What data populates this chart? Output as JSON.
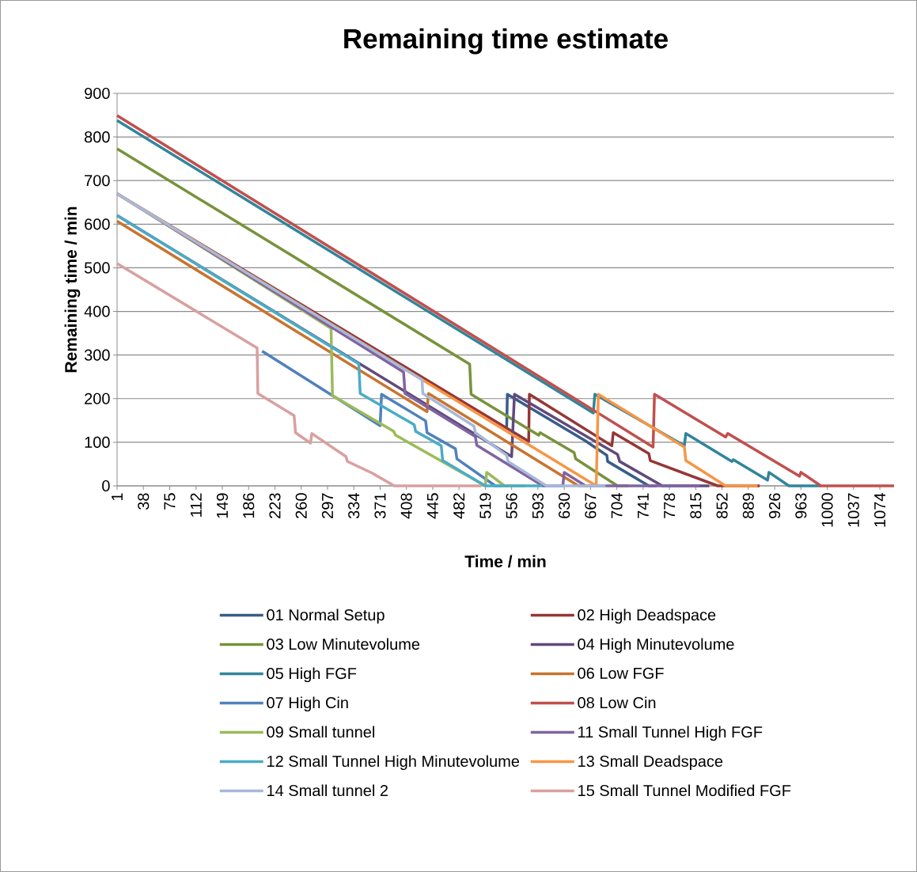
{
  "chart_data": {
    "type": "line",
    "title": "Remaining time estimate",
    "xlabel": "Time / min",
    "ylabel": "Remaining time / min",
    "xlim": [
      1,
      1094
    ],
    "ylim": [
      0,
      900
    ],
    "xticks": [
      1,
      38,
      75,
      112,
      149,
      186,
      223,
      260,
      297,
      334,
      371,
      408,
      445,
      482,
      519,
      556,
      593,
      630,
      667,
      704,
      741,
      778,
      815,
      852,
      889,
      926,
      963,
      1000,
      1037,
      1074
    ],
    "yticks": [
      0,
      100,
      200,
      300,
      400,
      500,
      600,
      700,
      800,
      900
    ],
    "grid": "y",
    "legend": "bottom",
    "line_style": "solid",
    "series": [
      {
        "name": "01 Normal Setup",
        "color": "#385d8a",
        "x": [
          549,
          550,
          660,
          690,
          691,
          749,
          760
        ],
        "values": [
          131,
          210,
          103,
          70,
          56,
          0,
          0
        ]
      },
      {
        "name": "02 High Deadspace",
        "color": "#953735",
        "x": [
          1,
          580,
          581,
          697,
          699,
          749,
          751,
          846,
          905
        ],
        "values": [
          670,
          102,
          210,
          92,
          122,
          74,
          58,
          0,
          0
        ]
      },
      {
        "name": "03 Low Minutevolume",
        "color": "#77933c",
        "x": [
          1,
          497,
          499,
          594,
          596,
          644,
          646,
          705,
          720
        ],
        "values": [
          773,
          279,
          210,
          116,
          122,
          76,
          62,
          0,
          0
        ]
      },
      {
        "name": "04 High Minutevolume",
        "color": "#604a7b",
        "x": [
          1,
          556,
          560,
          705,
          708,
          768,
          834
        ],
        "values": [
          620,
          67,
          210,
          72,
          56,
          0,
          0
        ]
      },
      {
        "name": "05 High FGF",
        "color": "#31859c",
        "x": [
          1,
          671,
          673,
          799,
          801,
          866,
          868,
          916,
          918,
          946,
          991
        ],
        "values": [
          838,
          167,
          210,
          92,
          120,
          56,
          60,
          13,
          31,
          0,
          0
        ]
      },
      {
        "name": "06 Low FGF",
        "color": "#c8742f",
        "x": [
          1,
          437,
          439,
          650,
          660
        ],
        "values": [
          607,
          170,
          212,
          0,
          0
        ]
      },
      {
        "name": "07 High Cin",
        "color": "#4f81bd",
        "x": [
          205,
          371,
          373,
          435,
          437,
          477,
          479,
          533,
          545
        ],
        "values": [
          309,
          138,
          210,
          149,
          122,
          85,
          62,
          0,
          0
        ]
      },
      {
        "name": "08 Low Cin",
        "color": "#c0504d",
        "x": [
          1,
          755,
          757,
          857,
          860,
          961,
          963,
          991,
          1094
        ],
        "values": [
          849,
          89,
          210,
          112,
          120,
          22,
          31,
          0,
          0
        ]
      },
      {
        "name": "09 Small tunnel",
        "color": "#9bbb59",
        "x": [
          1,
          302,
          304,
          390,
          393,
          519,
          521,
          546,
          575
        ],
        "values": [
          670,
          361,
          207,
          125,
          116,
          0,
          31,
          0,
          0
        ]
      },
      {
        "name": "11 Small Tunnel High FGF",
        "color": "#8064a2",
        "x": [
          1,
          404,
          406,
          505,
          507,
          600,
          628,
          630,
          660,
          821
        ],
        "values": [
          670,
          261,
          212,
          113,
          93,
          0,
          0,
          31,
          0,
          0
        ]
      },
      {
        "name": "12 Small Tunnel High Minutevolume",
        "color": "#4bacc6",
        "x": [
          1,
          341,
          343,
          419,
          421,
          457,
          459,
          519,
          599
        ],
        "values": [
          620,
          280,
          212,
          140,
          125,
          92,
          58,
          0,
          0
        ]
      },
      {
        "name": "13 Small Deadspace",
        "color": "#f79646",
        "x": [
          1,
          675,
          678,
          799,
          801,
          857,
          902
        ],
        "values": [
          670,
          0,
          210,
          89,
          58,
          0,
          0
        ]
      },
      {
        "name": "14 Small tunnel 2",
        "color": "#a7b9d9",
        "x": [
          1,
          430,
          431,
          503,
          505,
          549,
          551,
          605,
          688
        ],
        "values": [
          670,
          243,
          212,
          137,
          122,
          70,
          56,
          0,
          0
        ]
      },
      {
        "name": "15 Small Tunnel Modified FGF",
        "color": "#d9a0a0",
        "x": [
          1,
          198,
          199,
          250,
          252,
          273,
          275,
          323,
          325,
          360,
          362,
          391,
          513
        ],
        "values": [
          510,
          316,
          212,
          161,
          122,
          98,
          120,
          67,
          56,
          29,
          27,
          0,
          0
        ]
      }
    ]
  }
}
